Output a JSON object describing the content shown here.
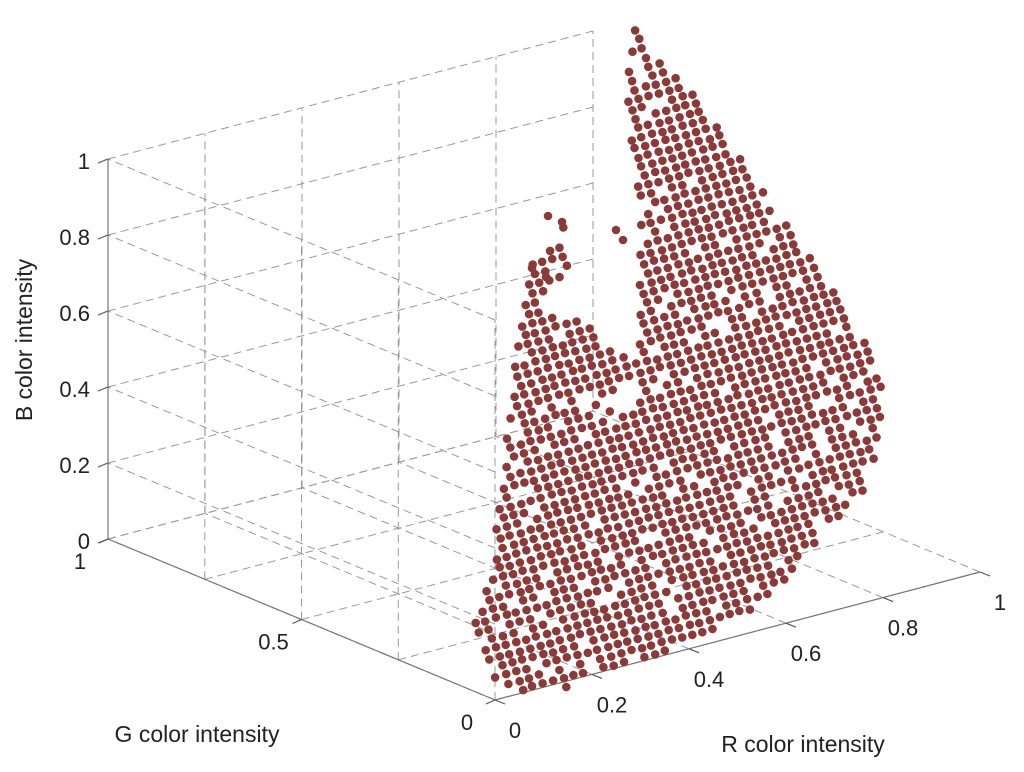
{
  "chart_data": {
    "type": "scatter",
    "projection": "3d",
    "title": "",
    "xlabel": "R color intensity",
    "ylabel": "G color intensity",
    "zlabel": "B color intensity",
    "xlim": [
      0,
      1
    ],
    "ylim": [
      0,
      1
    ],
    "zlim": [
      0,
      1
    ],
    "x_ticks": [
      "0",
      "0.2",
      "0.4",
      "0.6",
      "0.8",
      "1"
    ],
    "y_ticks": [
      "0",
      "0.5",
      "1"
    ],
    "z_ticks": [
      "0",
      "0.2",
      "0.4",
      "0.6",
      "0.8",
      "1"
    ],
    "grid": true,
    "marker_color": "#8b3a3a",
    "point_cloud": {
      "description_of_region": "dense cluster of pixel colors",
      "r_range": [
        0.05,
        1.0
      ],
      "g_range": [
        0.0,
        0.75
      ],
      "b_range": [
        0.0,
        0.85
      ]
    }
  }
}
